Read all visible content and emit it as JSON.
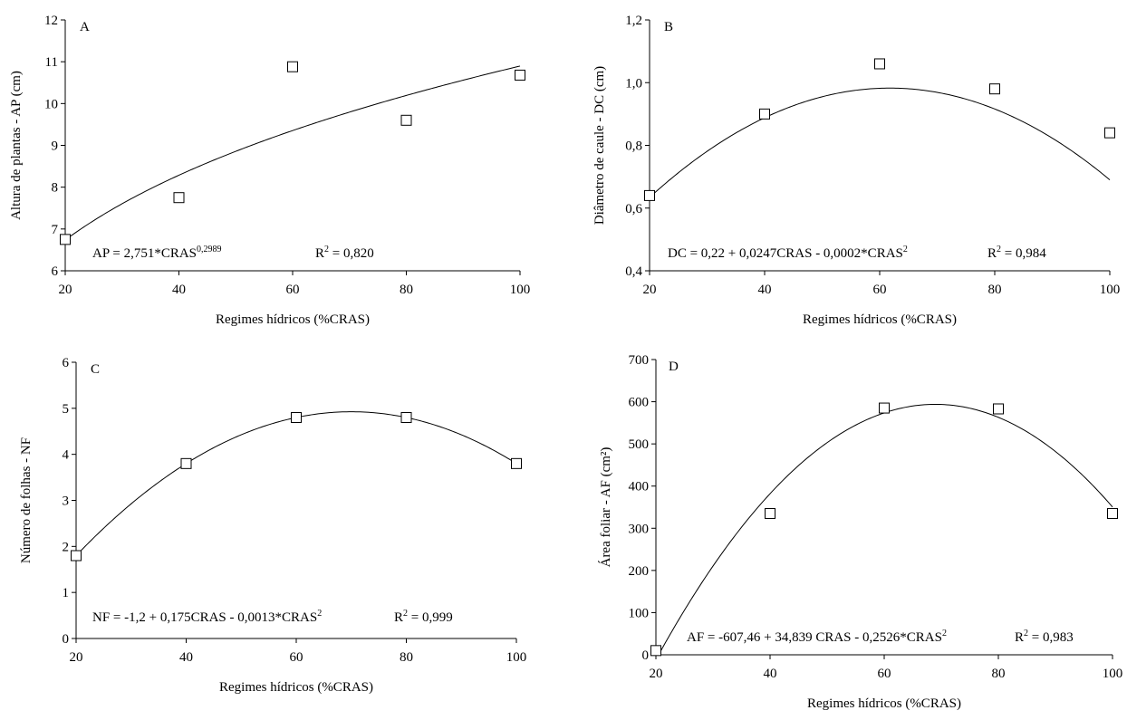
{
  "chart_data": [
    {
      "type": "scatter",
      "panel_label": "A",
      "xlabel": "Regimes hídricos (%CRAS)",
      "ylabel": "Altura de plantas - AP (cm)",
      "xlim": [
        20,
        100
      ],
      "ylim": [
        6,
        12
      ],
      "xticks": [
        20,
        40,
        60,
        80,
        100
      ],
      "yticks": [
        6,
        7,
        8,
        9,
        10,
        11,
        12
      ],
      "tick_decimals": 0,
      "points": {
        "x": [
          20,
          40,
          60,
          80,
          100
        ],
        "y": [
          6.75,
          7.75,
          10.88,
          9.6,
          10.68
        ]
      },
      "fit": {
        "model": "power",
        "coefficients": {
          "a": 2.751,
          "b": 0.2989
        }
      },
      "equation": {
        "lhs": "AP = 2,751*CRAS",
        "sup": "0,2989"
      },
      "r2": {
        "prefix": "R",
        "sup": "2",
        "value": " = 0,820"
      }
    },
    {
      "type": "scatter",
      "panel_label": "B",
      "xlabel": "Regimes hídricos (%CRAS)",
      "ylabel": "Diâmetro de caule - DC (cm)",
      "xlim": [
        20,
        100
      ],
      "ylim": [
        0.4,
        1.2
      ],
      "xticks": [
        20,
        40,
        60,
        80,
        100
      ],
      "yticks": [
        0.4,
        0.6,
        0.8,
        1.0,
        1.2
      ],
      "tick_decimals": 1,
      "points": {
        "x": [
          20,
          40,
          60,
          80,
          100
        ],
        "y": [
          0.64,
          0.9,
          1.06,
          0.98,
          0.84
        ]
      },
      "fit": {
        "model": "quadratic",
        "coefficients": {
          "a": 0.22,
          "b": 0.0247,
          "c": -0.0002
        }
      },
      "equation": {
        "lhs": "DC = 0,22 + 0,0247CRAS - 0,0002*CRAS",
        "sup": "2"
      },
      "r2": {
        "prefix": "R",
        "sup": "2",
        "value": " = 0,984"
      }
    },
    {
      "type": "scatter",
      "panel_label": "C",
      "xlabel": "Regimes hídricos (%CRAS)",
      "ylabel": "Número de folhas - NF",
      "xlim": [
        20,
        100
      ],
      "ylim": [
        0,
        6
      ],
      "xticks": [
        20,
        40,
        60,
        80,
        100
      ],
      "yticks": [
        0,
        1,
        2,
        3,
        4,
        5,
        6
      ],
      "tick_decimals": 0,
      "points": {
        "x": [
          20,
          40,
          60,
          80,
          100
        ],
        "y": [
          1.8,
          3.8,
          4.8,
          4.8,
          3.8
        ]
      },
      "fit": {
        "model": "quadratic",
        "coefficients": {
          "a": -1.2,
          "b": 0.175,
          "c": -0.00125
        }
      },
      "equation": {
        "lhs": "NF = -1,2 + 0,175CRAS - 0,0013*CRAS",
        "sup": "2"
      },
      "r2": {
        "prefix": "R",
        "sup": "2",
        "value": " = 0,999"
      }
    },
    {
      "type": "scatter",
      "panel_label": "D",
      "xlabel": "Regimes hídricos (%CRAS)",
      "ylabel": "Área foliar - AF (cm²)",
      "xlim": [
        20,
        100
      ],
      "ylim": [
        0,
        700
      ],
      "xticks": [
        20,
        40,
        60,
        80,
        100
      ],
      "yticks": [
        0,
        100,
        200,
        300,
        400,
        500,
        600,
        700
      ],
      "tick_decimals": 0,
      "points": {
        "x": [
          20,
          40,
          60,
          80,
          100
        ],
        "y": [
          10,
          335,
          585,
          583,
          335
        ]
      },
      "fit": {
        "model": "quadratic",
        "coefficients": {
          "a": -607.46,
          "b": 34.839,
          "c": -0.2526
        }
      },
      "equation": {
        "lhs": "AF = -607,46 + 34,839 CRAS - 0,2526*CRAS",
        "sup": "2"
      },
      "r2": {
        "prefix": "R",
        "sup": "2",
        "value": " = 0,983"
      }
    }
  ]
}
